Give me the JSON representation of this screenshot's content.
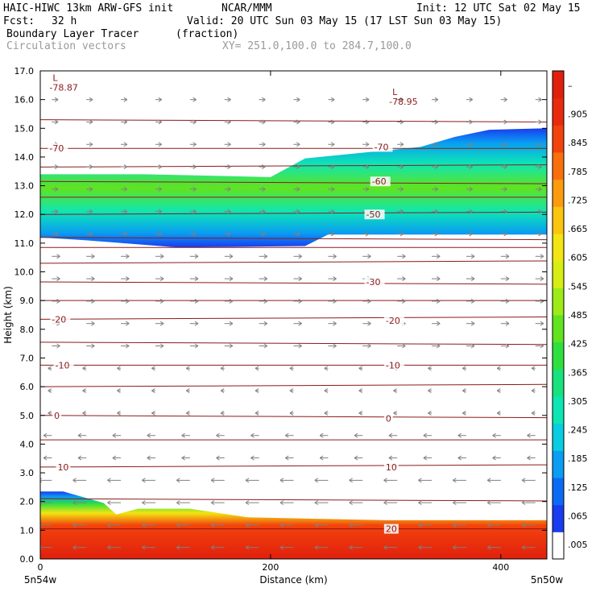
{
  "header": {
    "model": "HAIC-HIWC 13km ARW-GFS init",
    "org": "NCAR/MMM",
    "init": "Init: 12 UTC Sat 02 May 15",
    "fcst_label": "Fcst:",
    "fcst_value": "32 h",
    "valid": "Valid: 20 UTC Sun 03 May 15 (17 LST Sun 03 May 15)",
    "field": "Boundary Layer Tracer",
    "units": "(fraction)",
    "vectors": "Circulation vectors",
    "xy": "XY= 251.0,100.0 to 284.7,100.0"
  },
  "chart_data": {
    "type": "heatmap",
    "xlabel": "Distance (km)",
    "ylabel": "Height (km)",
    "xlim": [
      0,
      440
    ],
    "ylim": [
      0,
      17
    ],
    "x_ticks": [
      0,
      200,
      400
    ],
    "y_ticks": [
      "0.0",
      "1.0",
      "2.0",
      "3.0",
      "4.0",
      "5.0",
      "6.0",
      "7.0",
      "8.0",
      "9.0",
      "10.0",
      "11.0",
      "12.0",
      "13.0",
      "14.0",
      "15.0",
      "16.0",
      "17.0"
    ],
    "x_endpoints": [
      "5n54w",
      "5n50w"
    ],
    "colorbar": {
      "labels": [
        ".005",
        ".065",
        ".125",
        ".185",
        ".245",
        ".305",
        ".365",
        ".425",
        ".485",
        ".545",
        ".605",
        ".665",
        ".725",
        ".785",
        ".845",
        ".905",
        "–"
      ],
      "colors": [
        "#ffffff",
        "#1a3cf0",
        "#0b6bf5",
        "#0a9df2",
        "#08cde0",
        "#0de6b4",
        "#18e27e",
        "#2ee03e",
        "#61e31e",
        "#9ceb17",
        "#d6ee14",
        "#f2e512",
        "#fbc40f",
        "#fc9b0e",
        "#fa6f0d",
        "#f3430d",
        "#ea2a0d",
        "#e0200d"
      ]
    },
    "contour_labels": [
      {
        "text": "-70",
        "x": 8,
        "y": 14.3
      },
      {
        "text": "-70",
        "x": 290,
        "y": 14.35
      },
      {
        "text": "-60",
        "x": 288,
        "y": 13.15
      },
      {
        "text": "-50",
        "x": 283,
        "y": 12.0
      },
      {
        "text": "-30",
        "x": 283,
        "y": 9.65
      },
      {
        "text": "-20",
        "x": 10,
        "y": 8.35
      },
      {
        "text": "-20",
        "x": 300,
        "y": 8.3
      },
      {
        "text": "-10",
        "x": 13,
        "y": 6.75
      },
      {
        "text": "-10",
        "x": 300,
        "y": 6.75
      },
      {
        "text": "0",
        "x": 12,
        "y": 5.0
      },
      {
        "text": "0",
        "x": 300,
        "y": 4.9
      },
      {
        "text": "10",
        "x": 15,
        "y": 3.2
      },
      {
        "text": "10",
        "x": 300,
        "y": 3.2
      },
      {
        "text": "20",
        "x": 300,
        "y": 1.05
      }
    ],
    "low_markers": [
      {
        "symbol": "L",
        "value": "-78.87",
        "x": 8,
        "y": 16.6
      },
      {
        "symbol": "L",
        "value": "-78.95",
        "x": 303,
        "y": 16.1
      }
    ],
    "contour_levels_y": [
      15.3,
      14.3,
      13.65,
      13.15,
      12.6,
      12.0,
      11.2,
      10.85,
      10.3,
      9.65,
      9.0,
      8.35,
      7.55,
      6.75,
      6.0,
      5.0,
      4.15,
      3.2,
      2.1,
      1.05
    ],
    "tracer_layers": {
      "upper": {
        "top_left": 13.4,
        "top_right": 15.0,
        "bottom_left": 11.2,
        "bottom_right": 11.3,
        "core": 12.3
      },
      "boundary_layer": {
        "top_left": 2.35,
        "top_right": 1.35
      }
    },
    "grid": false
  },
  "colors": {
    "contour": "#8b1a1a",
    "vector": "#808080",
    "axis": "#000000"
  }
}
